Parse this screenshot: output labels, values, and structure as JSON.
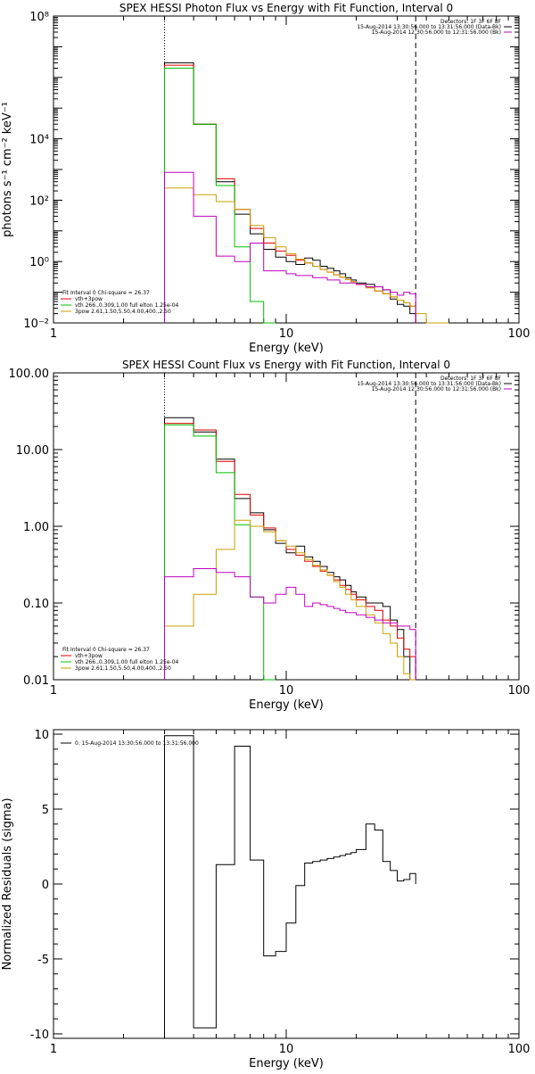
{
  "chart_data": [
    {
      "type": "line",
      "title": "SPEX HESSI Photon Flux vs Energy with Fit Function, Interval 0",
      "xlabel": "Energy (keV)",
      "ylabel": "photons s⁻¹ cm⁻² keV⁻¹",
      "xscale": "log",
      "yscale": "log",
      "xlim": [
        1,
        100
      ],
      "ylim": [
        0.01,
        100000000
      ],
      "x_ticks": [
        1,
        10,
        100
      ],
      "x_tick_labels": [
        "1",
        "10",
        "100"
      ],
      "y_ticks": [
        0.01,
        1,
        100,
        10000,
        100000000
      ],
      "y_tick_labels": [
        "10⁻²",
        "10⁰",
        "10²",
        "10⁴",
        "10⁸"
      ],
      "vlines": [
        {
          "x": 3,
          "style": "dotted"
        },
        {
          "x": 36,
          "style": "dashed"
        }
      ],
      "legend_top": [
        {
          "text": "Detectors: 1F 3F 6F 8F",
          "color": "#000000"
        },
        {
          "text": "15-Aug-2014 13:30:56.000 to 13:31:56.000 (Data-Bk)",
          "color": "#000000"
        },
        {
          "text": "15-Aug-2014 12:30:56.000 to 12:31:56.000 (Bk)",
          "color": "#c000c0"
        }
      ],
      "legend_bottom": [
        {
          "text": "Fit Interval 0   Chi-square = 26.37",
          "color": "#000000"
        },
        {
          "text": "vth+3pow",
          "color": "#e00000"
        },
        {
          "text": "vth 266.,0.309,1.00  full elton 1.25e-04",
          "color": "#00c000"
        },
        {
          "text": "3pow 2.61,1.50,5.50,4.00,400.,2.50",
          "color": "#c8a000"
        }
      ],
      "edges": [
        3,
        4,
        5,
        6,
        7,
        8,
        9,
        10,
        11,
        12,
        13,
        14,
        15,
        16,
        17,
        18,
        19,
        20,
        22,
        24,
        26,
        28,
        30,
        32,
        34,
        36,
        40,
        45,
        50
      ],
      "series": [
        {
          "color": "#000000",
          "values": [
            3000000,
            30000,
            400,
            35,
            8,
            2.5,
            1.4,
            1.0,
            0.8,
            1.3,
            1.1,
            0.7,
            0.6,
            0.5,
            0.4,
            0.3,
            0.25,
            0.2,
            0.18,
            0.15,
            0.12,
            0.06,
            0.04,
            0.035,
            0.02,
            null,
            null,
            null
          ]
        },
        {
          "color": "#e00000",
          "values": [
            2500000,
            30000,
            500,
            50,
            12,
            4,
            2.2,
            1.6,
            1.1,
            0.9,
            0.7,
            0.55,
            0.45,
            0.37,
            0.31,
            0.26,
            0.22,
            0.18,
            0.14,
            0.11,
            0.09,
            0.07,
            0.055,
            0.045,
            0.035,
            null,
            null,
            null
          ]
        },
        {
          "color": "#00c000",
          "values": [
            2000000,
            30000,
            300,
            3,
            0.05,
            0.002,
            null,
            null,
            null,
            null,
            null,
            null,
            null,
            null,
            null,
            null,
            null,
            null,
            null,
            null,
            null,
            null,
            null,
            null,
            null,
            null,
            null,
            null
          ]
        },
        {
          "color": "#c8a000",
          "values": [
            250,
            150,
            90,
            50,
            15,
            6,
            3,
            1.8,
            1.2,
            0.9,
            0.7,
            0.55,
            0.45,
            0.37,
            0.31,
            0.26,
            0.22,
            0.18,
            0.14,
            0.11,
            0.09,
            0.07,
            0.055,
            0.045,
            0.035,
            0.02,
            0.01,
            0.006
          ]
        },
        {
          "color": "#c000c0",
          "values": [
            800,
            30,
            1.5,
            1.0,
            4,
            0.5,
            0.5,
            0.4,
            0.35,
            0.35,
            0.3,
            0.3,
            0.25,
            0.25,
            0.2,
            0.2,
            0.2,
            0.18,
            0.15,
            0.15,
            0.12,
            0.1,
            0.08,
            0.1,
            0.09,
            null,
            null,
            null
          ]
        }
      ]
    },
    {
      "type": "line",
      "title": "SPEX HESSI Count Flux vs Energy with Fit Function, Interval 0",
      "xlabel": "Energy (keV)",
      "ylabel": "",
      "xscale": "log",
      "yscale": "log",
      "xlim": [
        1,
        100
      ],
      "ylim": [
        0.01,
        100
      ],
      "x_ticks": [
        1,
        10,
        100
      ],
      "x_tick_labels": [
        "1",
        "10",
        "100"
      ],
      "y_ticks": [
        0.01,
        0.1,
        1,
        10,
        100
      ],
      "y_tick_labels": [
        "0.01",
        "0.10",
        "1.00",
        "10.00",
        "100.00"
      ],
      "vlines": [
        {
          "x": 3,
          "style": "dotted"
        },
        {
          "x": 36,
          "style": "dashed"
        }
      ],
      "legend_top": [
        {
          "text": "Detectors: 1F 3F 6F 8F",
          "color": "#000000"
        },
        {
          "text": "15-Aug-2014 13:30:56.000 to 13:31:56.000 (Data-Bk)",
          "color": "#000000"
        },
        {
          "text": "15-Aug-2014 12:30:56.000 to 12:31:56.000 (Bk)",
          "color": "#c000c0"
        }
      ],
      "legend_bottom": [
        {
          "text": "Fit Interval 0   Chi-square = 26.37",
          "color": "#000000"
        },
        {
          "text": "vth+3pow",
          "color": "#e00000"
        },
        {
          "text": "vth 266.,0.309,1.00  full elton 1.25e-04",
          "color": "#00c000"
        },
        {
          "text": "3pow 2.61,1.50,5.50,4.00,400.,2.50",
          "color": "#c8a000"
        }
      ],
      "edges": [
        3,
        4,
        5,
        6,
        7,
        8,
        9,
        10,
        11,
        12,
        13,
        14,
        15,
        16,
        17,
        18,
        19,
        20,
        22,
        24,
        26,
        28,
        30,
        32,
        34,
        36
      ],
      "series": [
        {
          "color": "#000000",
          "values": [
            26,
            17,
            7.5,
            2.3,
            1.5,
            0.9,
            0.6,
            0.45,
            0.55,
            0.4,
            0.35,
            0.3,
            0.25,
            0.22,
            0.2,
            0.17,
            0.14,
            0.12,
            0.1,
            0.1,
            0.09,
            0.06,
            0.045,
            0.02,
            0.01
          ]
        },
        {
          "color": "#e00000",
          "values": [
            22,
            18,
            7.0,
            2.6,
            1.4,
            0.95,
            0.65,
            0.5,
            0.42,
            0.35,
            0.3,
            0.26,
            0.23,
            0.2,
            0.17,
            0.15,
            0.13,
            0.11,
            0.09,
            0.08,
            0.06,
            0.05,
            0.035,
            0.025,
            0.02
          ]
        },
        {
          "color": "#00c000",
          "values": [
            21,
            15,
            5,
            1.05,
            0.12,
            0.01,
            null,
            null,
            null,
            null,
            null,
            null,
            null,
            null,
            null,
            null,
            null,
            null,
            null,
            null,
            null,
            null,
            null,
            null,
            null
          ]
        },
        {
          "color": "#c8a000",
          "values": [
            0.05,
            0.13,
            0.5,
            1.2,
            1.0,
            0.85,
            0.65,
            0.55,
            0.45,
            0.37,
            0.31,
            0.27,
            0.23,
            0.19,
            0.16,
            0.13,
            0.11,
            0.09,
            0.07,
            0.055,
            0.04,
            0.03,
            0.02,
            0.012,
            0.01
          ]
        },
        {
          "color": "#c000c0",
          "values": [
            0.22,
            0.28,
            0.25,
            0.22,
            0.12,
            0.1,
            0.13,
            0.16,
            0.13,
            0.09,
            0.1,
            0.095,
            0.09,
            0.085,
            0.08,
            0.075,
            0.075,
            0.07,
            0.065,
            0.06,
            0.055,
            0.055,
            0.05,
            0.05,
            0.045
          ]
        }
      ]
    },
    {
      "type": "line",
      "title": "",
      "xlabel": "Energy (keV)",
      "ylabel": "Normalized Residuals (sigma)",
      "xscale": "log",
      "yscale": "linear",
      "xlim": [
        1,
        100
      ],
      "ylim": [
        -10.3,
        10.3
      ],
      "x_ticks": [
        1,
        10,
        100
      ],
      "x_tick_labels": [
        "1",
        "10",
        "100"
      ],
      "y_ticks": [
        -10,
        -5,
        0,
        5,
        10
      ],
      "y_tick_labels": [
        "-10",
        "-5",
        "0",
        "5",
        "10"
      ],
      "legend_top_left": "0. 15-Aug-2014 13:30:56.000 to 13:31:56.000",
      "edges": [
        3,
        4,
        5,
        6,
        7,
        8,
        9,
        10,
        11,
        12,
        13,
        14,
        15,
        16,
        17,
        18,
        19,
        20,
        22,
        24,
        26,
        28,
        30,
        32,
        34,
        36
      ],
      "series": [
        {
          "color": "#000000",
          "values": [
            9.9,
            -9.6,
            1.3,
            9.2,
            1.6,
            -4.8,
            -4.5,
            -2.6,
            -0.1,
            1.4,
            1.5,
            1.6,
            1.7,
            1.8,
            1.9,
            2.0,
            2.1,
            2.3,
            4.0,
            3.6,
            1.5,
            0.9,
            0.2,
            0.3,
            0.7
          ]
        }
      ]
    }
  ]
}
